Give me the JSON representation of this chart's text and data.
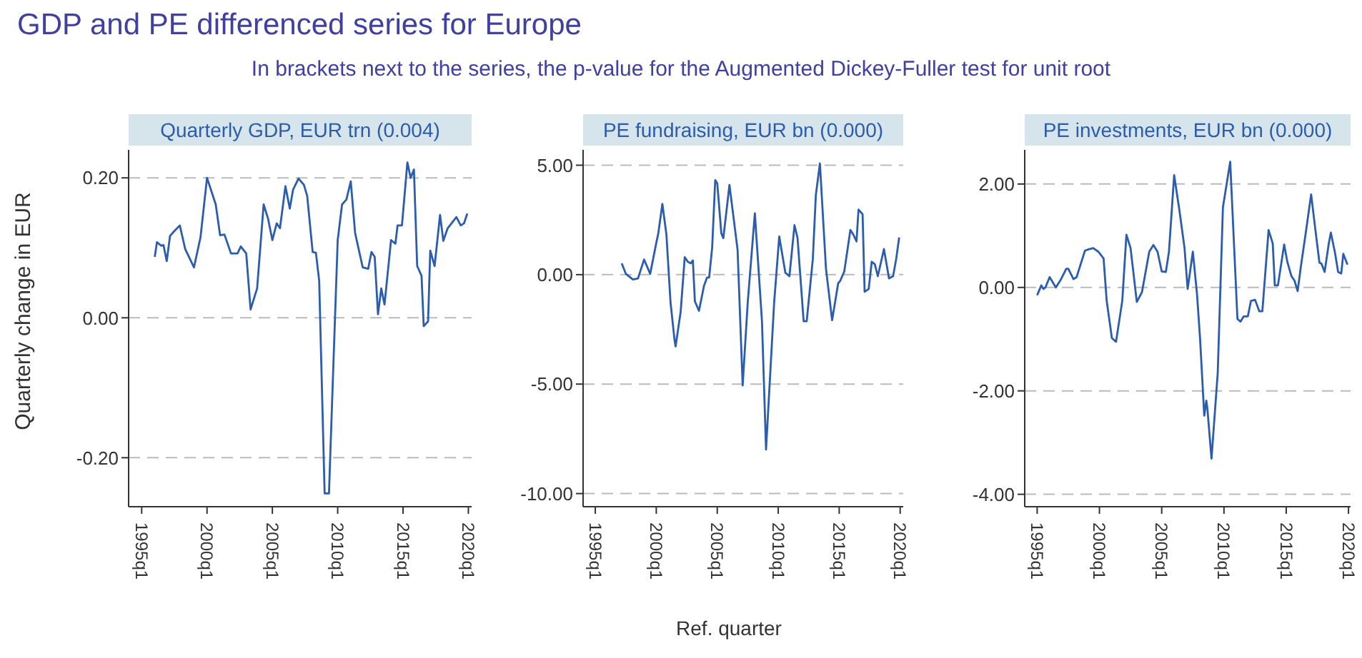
{
  "chart_data": [
    {
      "type": "line",
      "title": "GDP and PE differenced series for Europe",
      "subtitle": "In brackets next to the series, the p-value for the Augmented Dickey-Fuller test for unit root",
      "ylabel": "Quarterly change in EUR",
      "grid": "y",
      "marker": "none",
      "line_style": "solid",
      "xlim": [
        "1994-01",
        "2020-04"
      ],
      "xticks": [
        {
          "value": "1995-01",
          "label": "1995q1"
        },
        {
          "value": "2000-01",
          "label": "2000q1"
        },
        {
          "value": "2005-01",
          "label": "2005q1"
        },
        {
          "value": "2010-01",
          "label": "2010q1"
        },
        {
          "value": "2015-01",
          "label": "2015q1"
        },
        {
          "value": "2020-01",
          "label": "2020q1"
        }
      ],
      "ylim": [
        -0.27,
        0.24
      ],
      "yticks": [
        {
          "value": -0.2,
          "label": "-0.20"
        },
        {
          "value": 0,
          "label": "0.00"
        },
        {
          "value": 0.2,
          "label": "0.20"
        }
      ],
      "series": [
        {
          "name": "Quarterly GDP, EUR trn (0.004)",
          "color": "#2b5cad",
          "x": [
            "1996-01",
            "1996-03",
            "1996-07",
            "1996-09",
            "1996-12",
            "1997-03",
            "1997-07",
            "1997-12",
            "1998-05",
            "1999-01",
            "1999-07",
            "2000-01",
            "2000-09",
            "2001-01",
            "2001-05",
            "2001-11",
            "2002-05",
            "2002-08",
            "2003-01",
            "2003-05",
            "2003-11",
            "2004-05",
            "2004-09",
            "2005-01",
            "2005-05",
            "2005-08",
            "2006-01",
            "2006-05",
            "2006-08",
            "2007-01",
            "2007-06",
            "2007-09",
            "2008-02",
            "2008-05",
            "2008-08",
            "2009-01",
            "2009-05",
            "2009-08",
            "2010-01",
            "2010-05",
            "2010-09",
            "2011-01",
            "2011-05",
            "2011-12",
            "2012-05",
            "2012-08",
            "2012-11",
            "2013-02",
            "2013-05",
            "2013-08",
            "2014-02",
            "2014-06",
            "2014-08",
            "2014-12",
            "2015-05",
            "2015-08",
            "2015-11",
            "2016-02",
            "2016-06",
            "2016-08",
            "2016-12",
            "2017-02",
            "2017-06",
            "2017-11",
            "2018-02",
            "2018-06",
            "2018-12",
            "2019-02",
            "2019-06",
            "2019-09",
            "2019-12"
          ],
          "values": [
            0.087,
            0.108,
            0.103,
            0.104,
            0.081,
            0.117,
            0.124,
            0.132,
            0.098,
            0.072,
            0.115,
            0.2,
            0.162,
            0.118,
            0.119,
            0.092,
            0.092,
            0.102,
            0.092,
            0.012,
            0.042,
            0.162,
            0.142,
            0.111,
            0.135,
            0.128,
            0.188,
            0.156,
            0.183,
            0.199,
            0.19,
            0.174,
            0.094,
            0.093,
            0.053,
            -0.251,
            -0.251,
            -0.114,
            0.111,
            0.162,
            0.169,
            0.195,
            0.121,
            0.072,
            0.07,
            0.094,
            0.087,
            0.005,
            0.042,
            0.019,
            0.111,
            0.106,
            0.132,
            0.132,
            0.222,
            0.2,
            0.212,
            0.074,
            0.06,
            -0.012,
            -0.005,
            0.096,
            0.074,
            0.147,
            0.11,
            0.128,
            0.14,
            0.144,
            0.132,
            0.135,
            0.149
          ]
        }
      ]
    },
    {
      "type": "line",
      "xlabel": "Ref. quarter",
      "grid": "y",
      "marker": "none",
      "line_style": "solid",
      "xlim": [
        "1994-01",
        "2020-04"
      ],
      "xticks": [
        {
          "value": "1995-01",
          "label": "1995q1"
        },
        {
          "value": "2000-01",
          "label": "2000q1"
        },
        {
          "value": "2005-01",
          "label": "2005q1"
        },
        {
          "value": "2010-01",
          "label": "2010q1"
        },
        {
          "value": "2015-01",
          "label": "2015q1"
        },
        {
          "value": "2020-01",
          "label": "2020q1"
        }
      ],
      "ylim": [
        -10.6,
        5.7
      ],
      "yticks": [
        {
          "value": -10,
          "label": "-10.00"
        },
        {
          "value": -5,
          "label": "-5.00"
        },
        {
          "value": 0,
          "label": "0.00"
        },
        {
          "value": 5,
          "label": "5.00"
        }
      ],
      "series": [
        {
          "name": "PE fundraising, EUR bn (0.000)",
          "color": "#2b5cad",
          "x": [
            "1997-03",
            "1997-07",
            "1998-02",
            "1998-07",
            "1999-01",
            "1999-07",
            "2000-01",
            "2000-03",
            "2000-07",
            "2000-11",
            "2001-03",
            "2001-07",
            "2001-08",
            "2002-01",
            "2002-05",
            "2002-08",
            "2002-11",
            "2003-01",
            "2003-03",
            "2003-07",
            "2003-12",
            "2004-03",
            "2004-05",
            "2004-08",
            "2004-11",
            "2005-01",
            "2005-05",
            "2005-07",
            "2006-01",
            "2006-09",
            "2007-02",
            "2007-07",
            "2008-02",
            "2008-09",
            "2009-01",
            "2009-09",
            "2010-02",
            "2010-08",
            "2010-12",
            "2011-05",
            "2011-08",
            "2012-02",
            "2012-05",
            "2012-11",
            "2013-02",
            "2013-06",
            "2013-12",
            "2014-06",
            "2014-12",
            "2015-02",
            "2015-06",
            "2015-12",
            "2016-03",
            "2016-06",
            "2016-08",
            "2016-12",
            "2017-02",
            "2017-06",
            "2017-09",
            "2017-12",
            "2018-03",
            "2018-09",
            "2019-02",
            "2019-06",
            "2019-09",
            "2019-12"
          ],
          "values": [
            0.52,
            0.04,
            -0.22,
            -0.17,
            0.69,
            0.04,
            1.45,
            1.89,
            3.23,
            1.82,
            -1.26,
            -3.0,
            -3.28,
            -1.69,
            0.8,
            0.59,
            0.52,
            0.65,
            -1.22,
            -1.65,
            -0.5,
            -0.13,
            -0.13,
            1.24,
            4.32,
            4.17,
            1.89,
            1.67,
            4.1,
            1.13,
            -5.06,
            -1.26,
            2.8,
            -2.13,
            -7.99,
            -1.26,
            1.74,
            0.09,
            -0.07,
            2.26,
            1.67,
            -2.13,
            -2.13,
            0.69,
            3.63,
            5.08,
            0.26,
            -2.08,
            -0.39,
            -0.28,
            0.15,
            2.04,
            1.82,
            1.52,
            2.97,
            2.76,
            -0.78,
            -0.65,
            0.59,
            0.48,
            -0.07,
            1.17,
            -0.17,
            -0.07,
            0.7,
            1.7
          ]
        }
      ]
    },
    {
      "type": "line",
      "grid": "y",
      "marker": "none",
      "line_style": "solid",
      "xlim": [
        "1994-01",
        "2020-03"
      ],
      "xticks": [
        {
          "value": "1995-01",
          "label": "1995q1"
        },
        {
          "value": "2000-01",
          "label": "2000q1"
        },
        {
          "value": "2005-01",
          "label": "2005q1"
        },
        {
          "value": "2010-01",
          "label": "2010q1"
        },
        {
          "value": "2015-01",
          "label": "2015q1"
        },
        {
          "value": "2020-01",
          "label": "2020q1"
        }
      ],
      "ylim": [
        -4.24,
        2.66
      ],
      "yticks": [
        {
          "value": -4,
          "label": "-4.00"
        },
        {
          "value": -2,
          "label": "-2.00"
        },
        {
          "value": 0,
          "label": "0.00"
        },
        {
          "value": 2,
          "label": "2.00"
        }
      ],
      "series": [
        {
          "name": "PE investments, EUR bn (0.000)",
          "color": "#2b5cad",
          "x": [
            "1995-01",
            "1995-05",
            "1995-07",
            "1995-09",
            "1996-01",
            "1996-07",
            "1996-12",
            "1997-05",
            "1997-07",
            "1997-12",
            "1998-03",
            "1998-11",
            "1999-03",
            "1999-07",
            "1999-12",
            "2000-05",
            "2000-08",
            "2001-01",
            "2001-05",
            "2001-11",
            "2002-03",
            "2002-07",
            "2003-01",
            "2003-06",
            "2004-01",
            "2004-05",
            "2004-09",
            "2005-01",
            "2005-05",
            "2005-08",
            "2006-01",
            "2006-06",
            "2006-11",
            "2007-02",
            "2007-07",
            "2007-11",
            "2008-02",
            "2008-06",
            "2008-08",
            "2008-09",
            "2009-01",
            "2009-07",
            "2009-12",
            "2010-07",
            "2011-02",
            "2011-05",
            "2011-08",
            "2011-12",
            "2012-03",
            "2012-07",
            "2012-11",
            "2013-02",
            "2013-08",
            "2013-12",
            "2014-02",
            "2014-05",
            "2014-11",
            "2015-02",
            "2015-06",
            "2015-09",
            "2015-12",
            "2016-03",
            "2016-08",
            "2017-01",
            "2017-05",
            "2017-09",
            "2017-11",
            "2018-02",
            "2018-06",
            "2018-08",
            "2018-12",
            "2019-03",
            "2019-06",
            "2019-08",
            "2019-12"
          ],
          "values": [
            -0.15,
            0.04,
            -0.03,
            0.0,
            0.2,
            0.0,
            0.16,
            0.36,
            0.36,
            0.16,
            0.2,
            0.71,
            0.74,
            0.76,
            0.69,
            0.56,
            -0.26,
            -0.98,
            -1.05,
            -0.26,
            1.02,
            0.76,
            -0.28,
            -0.09,
            0.69,
            0.82,
            0.69,
            0.31,
            0.3,
            0.69,
            2.17,
            1.5,
            0.76,
            -0.03,
            0.69,
            -0.12,
            -1.0,
            -2.48,
            -2.19,
            -2.34,
            -3.31,
            -1.65,
            1.55,
            2.43,
            -0.61,
            -0.66,
            -0.56,
            -0.56,
            -0.26,
            -0.24,
            -0.46,
            -0.46,
            1.11,
            0.85,
            0.04,
            0.04,
            0.83,
            0.5,
            0.22,
            0.13,
            -0.07,
            0.39,
            1.08,
            1.8,
            1.13,
            0.48,
            0.46,
            0.3,
            0.85,
            1.06,
            0.67,
            0.3,
            0.27,
            0.65,
            0.44
          ]
        }
      ]
    }
  ]
}
